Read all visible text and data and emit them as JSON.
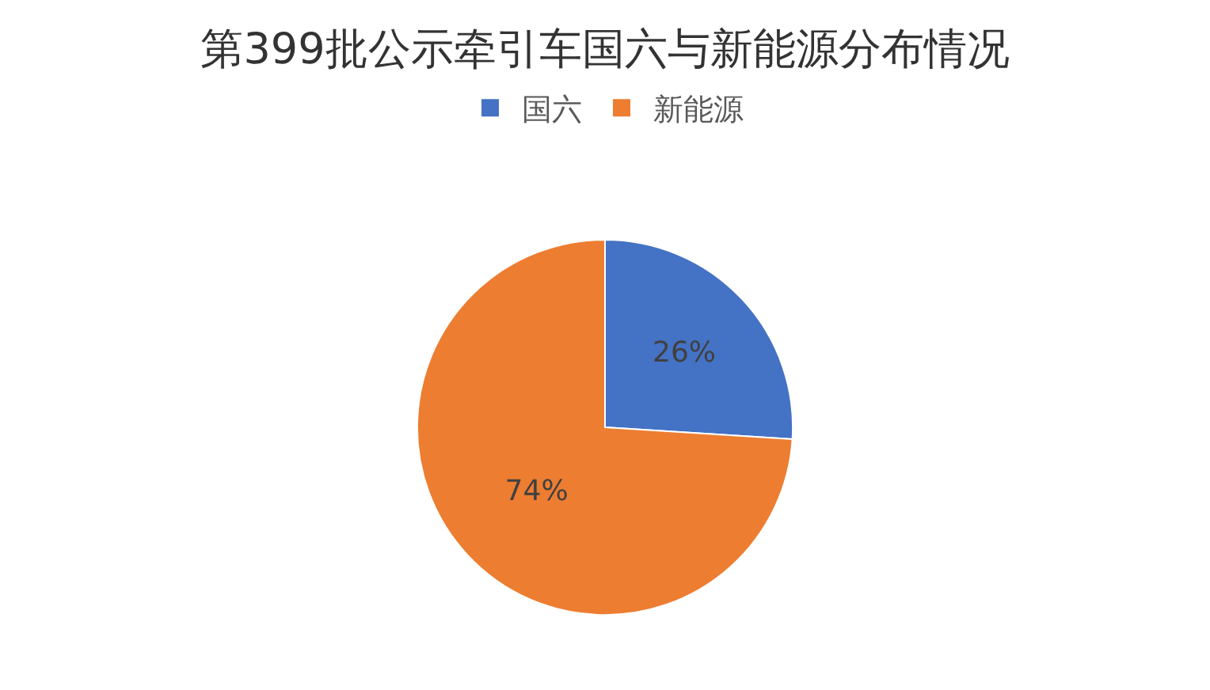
{
  "chart_data": {
    "type": "pie",
    "title": "第399批公示牵引车国六与新能源分布情况",
    "categories": [
      "国六",
      "新能源"
    ],
    "values": [
      26,
      74
    ],
    "value_labels": [
      "26%",
      "74%"
    ],
    "colors": [
      "#4472c4",
      "#ed7d31"
    ],
    "legend": "top"
  }
}
